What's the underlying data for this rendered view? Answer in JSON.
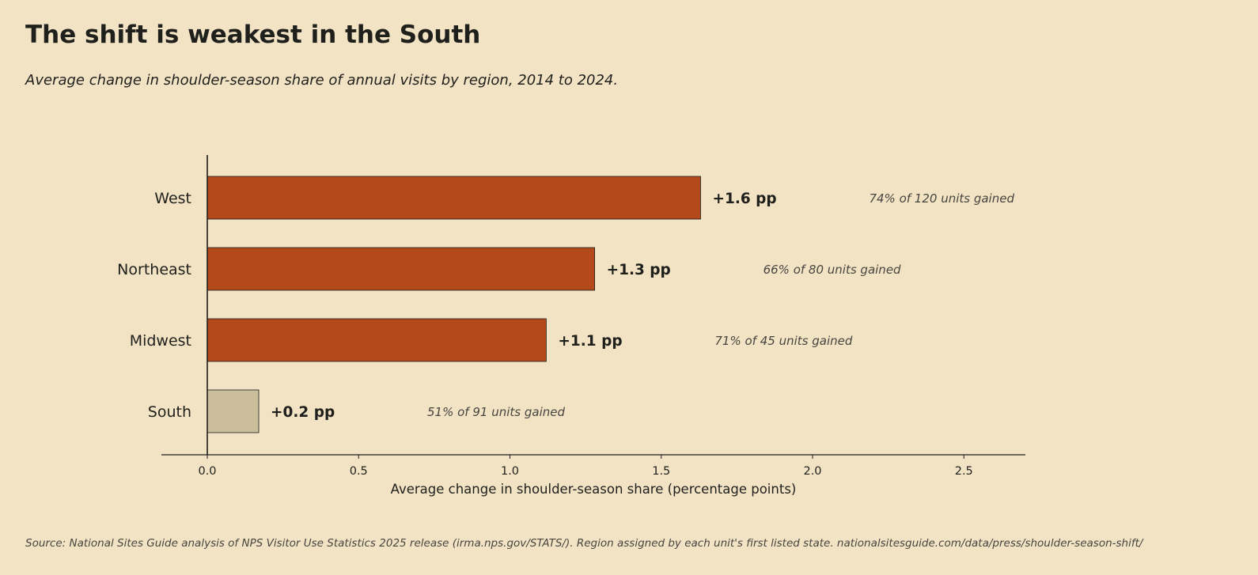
{
  "title": "The shift is weakest in the South",
  "subtitle": "Average change in shoulder-season share of annual visits by region, 2014 to 2024.",
  "source": "Source: National Sites Guide analysis of NPS Visitor Use Statistics 2025 release (irma.nps.gov/STATS/).  Region assigned by each unit's first listed state.  nationalsitesguide.com/data/press/shoulder-season-shift/",
  "colors": {
    "background": "#f2e3c5",
    "bar_highlight": "#b44a1b",
    "bar_muted": "#cbbe9a",
    "text": "#1f1f1c",
    "note": "#47453f"
  },
  "chart_data": {
    "type": "bar",
    "orientation": "horizontal",
    "categories": [
      "West",
      "Northeast",
      "Midwest",
      "South"
    ],
    "values": [
      1.63,
      1.28,
      1.12,
      0.17
    ],
    "value_labels": [
      "+1.6 pp",
      "+1.3 pp",
      "+1.1 pp",
      "+0.2 pp"
    ],
    "annotations": [
      "74% of 120 units gained",
      "66% of 80 units gained",
      "71% of 45 units gained",
      "51% of 91 units gained"
    ],
    "highlight": [
      true,
      true,
      true,
      false
    ],
    "xlabel": "Average change in shoulder-season share (percentage points)",
    "ylabel": "",
    "xlim": [
      -0.15,
      2.7
    ],
    "xticks": [
      0.0,
      0.5,
      1.0,
      1.5,
      2.0,
      2.5
    ],
    "xtick_labels": [
      "0.0",
      "0.5",
      "1.0",
      "1.5",
      "2.0",
      "2.5"
    ],
    "grid": false
  }
}
